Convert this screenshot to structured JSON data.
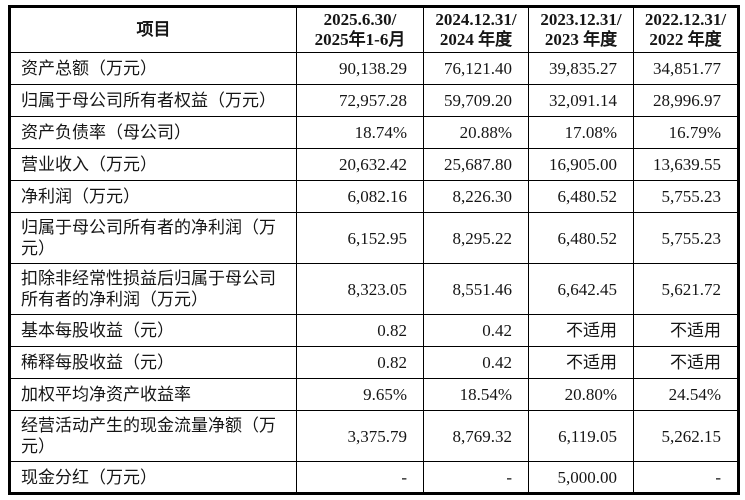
{
  "table": {
    "header": {
      "item_label": "项目",
      "periods": [
        {
          "line1": "2025.6.30/",
          "line2": "2025年1-6月"
        },
        {
          "line1": "2024.12.31/",
          "line2": "2024 年度"
        },
        {
          "line1": "2023.12.31/",
          "line2": "2023 年度"
        },
        {
          "line1": "2022.12.31/",
          "line2": "2022 年度"
        }
      ]
    },
    "rows": [
      {
        "label": "资产总额（万元）",
        "values": [
          "90,138.29",
          "76,121.40",
          "39,835.27",
          "34,851.77"
        ]
      },
      {
        "label": "归属于母公司所有者权益（万元）",
        "values": [
          "72,957.28",
          "59,709.20",
          "32,091.14",
          "28,996.97"
        ]
      },
      {
        "label": "资产负债率（母公司）",
        "values": [
          "18.74%",
          "20.88%",
          "17.08%",
          "16.79%"
        ]
      },
      {
        "label": "营业收入（万元）",
        "values": [
          "20,632.42",
          "25,687.80",
          "16,905.00",
          "13,639.55"
        ]
      },
      {
        "label": "净利润（万元）",
        "values": [
          "6,082.16",
          "8,226.30",
          "6,480.52",
          "5,755.23"
        ]
      },
      {
        "label": "归属于母公司所有者的净利润（万元）",
        "values": [
          "6,152.95",
          "8,295.22",
          "6,480.52",
          "5,755.23"
        ]
      },
      {
        "label": "扣除非经常性损益后归属于母公司所有者的净利润（万元）",
        "values": [
          "8,323.05",
          "8,551.46",
          "6,642.45",
          "5,621.72"
        ]
      },
      {
        "label": "基本每股收益（元）",
        "values": [
          "0.82",
          "0.42",
          "不适用",
          "不适用"
        ]
      },
      {
        "label": "稀释每股收益（元）",
        "values": [
          "0.82",
          "0.42",
          "不适用",
          "不适用"
        ]
      },
      {
        "label": "加权平均净资产收益率",
        "values": [
          "9.65%",
          "18.54%",
          "20.80%",
          "24.54%"
        ]
      },
      {
        "label": "经营活动产生的现金流量净额（万元）",
        "values": [
          "3,375.79",
          "8,769.32",
          "6,119.05",
          "5,262.15"
        ]
      },
      {
        "label": "现金分红（万元）",
        "values": [
          "-",
          "-",
          "5,000.00",
          "-"
        ]
      }
    ],
    "colors": {
      "border": "#000000",
      "text": "#151515",
      "background": "#ffffff"
    }
  }
}
